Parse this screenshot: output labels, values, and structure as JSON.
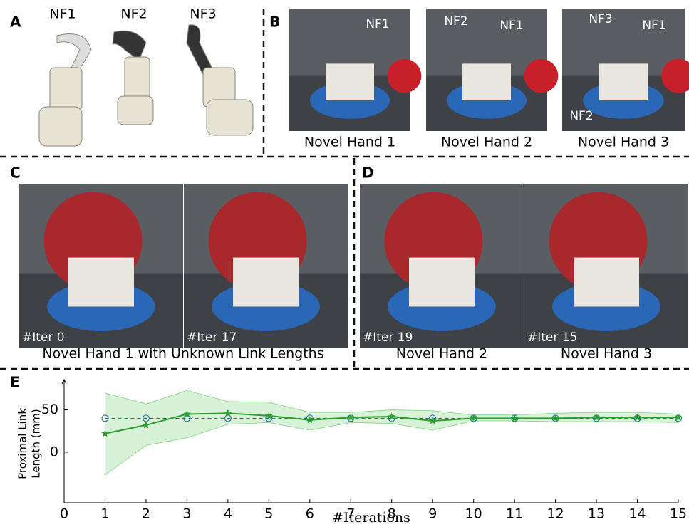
{
  "panels": [
    {
      "label": "A",
      "finger_names": [
        "NF1",
        "NF2",
        "NF3"
      ]
    },
    {
      "label": "B",
      "photos": [
        {
          "tags": [
            "NF1"
          ],
          "caption": "Novel Hand 1"
        },
        {
          "tags": [
            "NF2",
            "NF1"
          ],
          "caption": "Novel Hand 2"
        },
        {
          "tags": [
            "NF3",
            "NF1",
            "NF2"
          ],
          "caption": "Novel Hand 3"
        }
      ]
    },
    {
      "label": "C",
      "photos": [
        {
          "tag": "#Iter 0"
        },
        {
          "tag": "#Iter 17"
        }
      ],
      "caption": "Novel Hand 1 with Unknown Link Lengths"
    },
    {
      "label": "D",
      "photos": [
        {
          "tag": "#Iter 19",
          "caption": "Novel Hand 2"
        },
        {
          "tag": "#Iter 15",
          "caption": "Novel Hand 3"
        }
      ]
    },
    {
      "label": "E"
    }
  ],
  "chart_data": {
    "type": "line",
    "ylabel": [
      "Proximal Link",
      "Length (mm)"
    ],
    "xlabel": "#Iterations",
    "x": [
      1,
      2,
      3,
      4,
      5,
      6,
      7,
      8,
      9,
      10,
      11,
      12,
      13,
      14,
      15
    ],
    "xlim": [
      0,
      15
    ],
    "xticks": [
      0,
      1,
      2,
      3,
      4,
      5,
      6,
      7,
      8,
      9,
      10,
      11,
      12,
      13,
      14,
      15
    ],
    "ylim": [
      -60,
      80
    ],
    "yticks": [
      0,
      50
    ],
    "band": {
      "color": "#7fd37f",
      "upper": [
        70,
        57,
        73,
        60,
        59,
        47,
        47,
        50,
        49,
        44,
        44,
        46,
        47,
        47,
        45
      ],
      "lower": [
        -27,
        8,
        17,
        33,
        35,
        26,
        35,
        34,
        26,
        37,
        37,
        36,
        36,
        36,
        35
      ]
    },
    "series": [
      {
        "color": "#1f77b4",
        "marker": "circle",
        "dashed": true,
        "values": [
          40,
          40,
          40,
          40,
          40,
          40,
          40,
          40,
          40,
          40,
          40,
          40,
          40,
          40,
          40
        ]
      },
      {
        "color": "#2ca02c",
        "marker": "star",
        "dashed": false,
        "values": [
          22,
          32,
          45,
          46,
          43,
          38,
          41,
          42,
          37,
          40,
          40,
          40,
          41,
          41,
          41
        ]
      }
    ]
  }
}
